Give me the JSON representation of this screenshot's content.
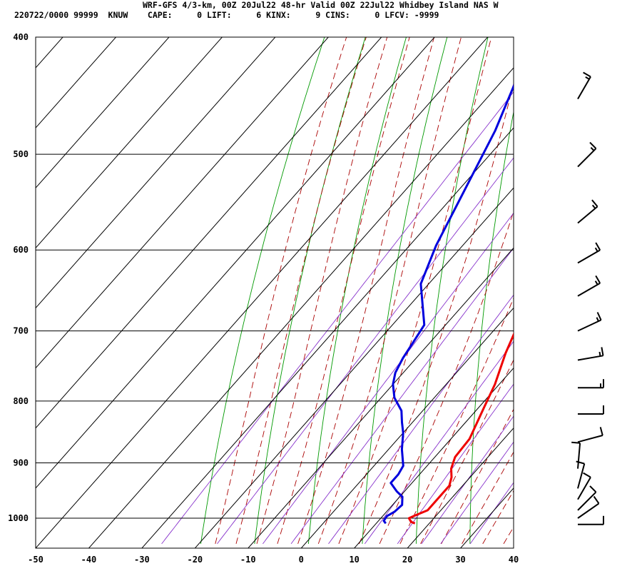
{
  "header": {
    "line1": "WRF-GFS 4/3-km, 00Z 20Jul22 48-hr Valid 00Z 22Jul22 Whidbey Island NAS W",
    "line2": "220722/0000 99999  KNUW    CAPE:     0 LIFT:     6 KINX:     9 CINS:     0 LFCV: -9999"
  },
  "colors": {
    "temperature": "#ee0000",
    "dewpoint": "#0000dd",
    "dry_adiabat": "#009900",
    "moist_adiabat": "#aa0000",
    "mixing_ratio": "#8833cc",
    "grid": "#000000",
    "wind_barb": "#000000"
  },
  "chart_data": {
    "type": "line",
    "title": "",
    "xlabel": "",
    "ylabel": "",
    "xlim": [
      -50,
      40
    ],
    "ylim": [
      1040,
      400
    ],
    "y_scale": "log-pressure",
    "grid": true,
    "x_ticks": [
      "-50",
      "-40",
      "-30",
      "-20",
      "-10",
      "0",
      "10",
      "20",
      "30",
      "40"
    ],
    "y_ticks": [
      "400",
      "500",
      "600",
      "700",
      "800",
      "900",
      "1000"
    ],
    "series": [
      {
        "role": "temperature",
        "points": [
          [
            17.3,
            1010
          ],
          [
            16.3,
            1007
          ],
          [
            15.3,
            1000
          ],
          [
            16,
            995
          ],
          [
            17.5,
            985
          ],
          [
            17.5,
            960
          ],
          [
            17.5,
            940
          ],
          [
            16.5,
            925
          ],
          [
            15,
            910
          ],
          [
            13.8,
            890
          ],
          [
            13.5,
            860
          ],
          [
            11,
            810
          ],
          [
            9.2,
            775
          ],
          [
            6,
            730
          ],
          [
            3.5,
            690
          ],
          [
            1.2,
            650
          ],
          [
            -1.5,
            620
          ],
          [
            -3.5,
            600
          ],
          [
            -6.5,
            570
          ],
          [
            -10.5,
            532
          ],
          [
            -14,
            500
          ],
          [
            -18,
            466
          ],
          [
            -23.3,
            425
          ]
        ]
      },
      {
        "role": "dewpoint",
        "points": [
          [
            11.8,
            1010
          ],
          [
            11,
            1005
          ],
          [
            10.8,
            996
          ],
          [
            11.5,
            988
          ],
          [
            11.8,
            975
          ],
          [
            10.5,
            960
          ],
          [
            8.5,
            950
          ],
          [
            6,
            935
          ],
          [
            6,
            920
          ],
          [
            5.5,
            905
          ],
          [
            2.5,
            877
          ],
          [
            0,
            850
          ],
          [
            -2,
            833
          ],
          [
            -4,
            815
          ],
          [
            -7.5,
            795
          ],
          [
            -10,
            775
          ],
          [
            -11.5,
            758
          ],
          [
            -12.5,
            737
          ],
          [
            -13.2,
            715
          ],
          [
            -14,
            692
          ],
          [
            -21.5,
            640
          ],
          [
            -25,
            595
          ],
          [
            -33,
            478
          ],
          [
            -39,
            420
          ]
        ]
      }
    ],
    "wind_barbs": [
      {
        "pressure": 1012,
        "dir_deg": 270,
        "speed_kt": 10
      },
      {
        "pressure": 1000,
        "dir_deg": 235,
        "speed_kt": 12
      },
      {
        "pressure": 985,
        "dir_deg": 225,
        "speed_kt": 10
      },
      {
        "pressure": 965,
        "dir_deg": 210,
        "speed_kt": 10
      },
      {
        "pressure": 945,
        "dir_deg": 195,
        "speed_kt": 10
      },
      {
        "pressure": 910,
        "dir_deg": 185,
        "speed_kt": 10
      },
      {
        "pressure": 865,
        "dir_deg": 255,
        "speed_kt": 10
      },
      {
        "pressure": 820,
        "dir_deg": 270,
        "speed_kt": 10
      },
      {
        "pressure": 780,
        "dir_deg": 270,
        "speed_kt": 15
      },
      {
        "pressure": 740,
        "dir_deg": 260,
        "speed_kt": 15
      },
      {
        "pressure": 700,
        "dir_deg": 245,
        "speed_kt": 15
      },
      {
        "pressure": 655,
        "dir_deg": 240,
        "speed_kt": 15
      },
      {
        "pressure": 615,
        "dir_deg": 240,
        "speed_kt": 15
      },
      {
        "pressure": 570,
        "dir_deg": 230,
        "speed_kt": 15
      },
      {
        "pressure": 512,
        "dir_deg": 225,
        "speed_kt": 15
      },
      {
        "pressure": 450,
        "dir_deg": 210,
        "speed_kt": 15
      }
    ]
  }
}
